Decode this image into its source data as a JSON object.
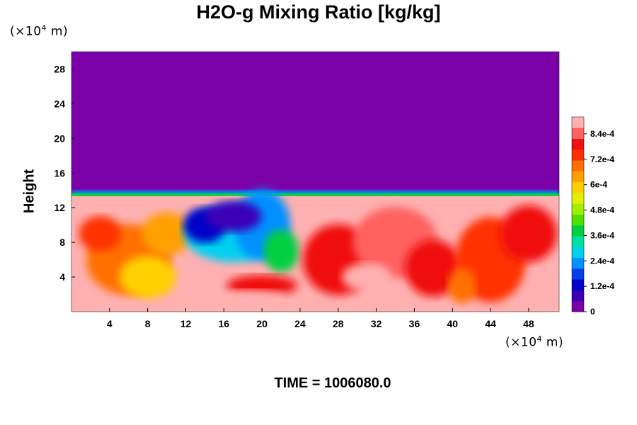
{
  "chart_data": {
    "type": "heatmap",
    "title": "H2O-g Mixing Ratio [kg/kg]",
    "ylabel": "Height",
    "xlabel": "",
    "x_unit": {
      "prefix": "(×10",
      "exp": "4",
      "suffix": " m)"
    },
    "y_unit": {
      "prefix": "(×10",
      "exp": "4",
      "suffix": " m)"
    },
    "xlim": [
      0,
      51.2
    ],
    "ylim": [
      0,
      30
    ],
    "x_ticks": [
      4,
      8,
      12,
      16,
      20,
      24,
      28,
      32,
      36,
      40,
      44,
      48
    ],
    "y_ticks": [
      4,
      8,
      12,
      16,
      20,
      24,
      28
    ],
    "colorbar": {
      "range": [
        0,
        0.00092
      ],
      "tick_values": [
        0,
        0.00012,
        0.00024,
        0.00036,
        0.00048,
        0.0006,
        0.00072,
        0.00084
      ],
      "tick_labels": [
        "0",
        "1.2e-4",
        "2.4e-4",
        "3.6e-4",
        "4.8e-4",
        "6e-4",
        "7.2e-4",
        "8.4e-4"
      ],
      "colors": [
        "#7a00a8",
        "#3a00b8",
        "#0000c8",
        "#0040e8",
        "#0090ff",
        "#00d0f0",
        "#00e0a0",
        "#00d040",
        "#50e000",
        "#a0f000",
        "#e0f000",
        "#ffd000",
        "#ffa000",
        "#ff7000",
        "#ff3000",
        "#f01010",
        "#ff6060",
        "#ffb0b0"
      ]
    },
    "field": {
      "description_levels": "moist layer below about 13 on the height axis, dry above",
      "top_value": 0,
      "moist_top": 13.5
    },
    "time_label": "TIME = 1006080.0"
  }
}
